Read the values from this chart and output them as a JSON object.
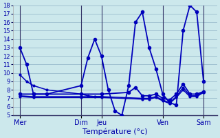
{
  "background_color": "#cce8ec",
  "grid_color": "#99bbcc",
  "line_color": "#0000bb",
  "xlabel": "Température (°c)",
  "ylim": [
    5,
    18
  ],
  "yticks": [
    5,
    6,
    7,
    8,
    9,
    10,
    11,
    12,
    13,
    14,
    15,
    16,
    17,
    18
  ],
  "xlim": [
    0,
    30
  ],
  "day_ticks": [
    1,
    10,
    13,
    22,
    28
  ],
  "day_labels": [
    "Mer",
    "Dim",
    "Jeu",
    "Ven",
    "Sam"
  ],
  "lines": [
    {
      "x": [
        1,
        2,
        3,
        5,
        10,
        11,
        12,
        13,
        14,
        15,
        16,
        17,
        18,
        19,
        20,
        21,
        22,
        23,
        24,
        25,
        26,
        27,
        28
      ],
      "y": [
        13,
        11,
        7.5,
        7.5,
        8.5,
        11.8,
        14.0,
        12.0,
        8.0,
        5.5,
        5.0,
        8.5,
        16.0,
        17.2,
        13.0,
        10.5,
        7.5,
        6.5,
        6.2,
        15.0,
        18.0,
        17.2,
        9.0
      ],
      "marker": "o",
      "ms": 3,
      "lw": 1.3
    },
    {
      "x": [
        1,
        3,
        10,
        13,
        17,
        18,
        19,
        20,
        21,
        22,
        23,
        24,
        25,
        26,
        27,
        28
      ],
      "y": [
        7.5,
        7.5,
        7.5,
        7.5,
        7.7,
        8.3,
        7.3,
        7.3,
        7.5,
        7.0,
        6.8,
        7.5,
        8.7,
        7.5,
        7.5,
        7.8
      ],
      "marker": "o",
      "ms": 3,
      "lw": 1.3
    },
    {
      "x": [
        1,
        3,
        10,
        13,
        19,
        20,
        21,
        22,
        23,
        24,
        25,
        26,
        27,
        28
      ],
      "y": [
        7.3,
        7.2,
        7.2,
        7.2,
        7.0,
        7.0,
        7.2,
        6.8,
        6.5,
        7.2,
        8.3,
        7.3,
        7.3,
        7.8
      ],
      "marker": "o",
      "ms": 2,
      "lw": 1.1
    },
    {
      "x": [
        1,
        3,
        10,
        13,
        19,
        20,
        21,
        22,
        23,
        24,
        25,
        26,
        27,
        28
      ],
      "y": [
        7.2,
        7.1,
        7.1,
        7.1,
        6.9,
        6.9,
        7.1,
        6.7,
        6.4,
        7.1,
        8.0,
        7.2,
        7.2,
        7.7
      ],
      "marker": "o",
      "ms": 2,
      "lw": 1.1
    },
    {
      "x": [
        1,
        2,
        3,
        5,
        10,
        11,
        12,
        13
      ],
      "y": [
        9.8,
        9.0,
        8.5,
        8.0,
        7.5,
        7.3,
        7.2,
        7.2
      ],
      "marker": "o",
      "ms": 2,
      "lw": 1.1
    }
  ]
}
